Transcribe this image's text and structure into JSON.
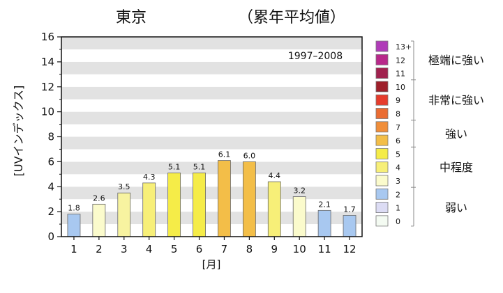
{
  "chart_data": {
    "type": "bar",
    "title": "東京",
    "subtitle": "（累年平均値）",
    "period": "1997–2008",
    "ylabel": "[UVインデックス]",
    "xlabel": "[月]",
    "ylim": [
      0,
      16
    ],
    "yticks": [
      "0",
      "2",
      "4",
      "6",
      "8",
      "10",
      "12",
      "14",
      "16"
    ],
    "categories": [
      "1",
      "2",
      "3",
      "4",
      "5",
      "6",
      "7",
      "8",
      "9",
      "10",
      "11",
      "12"
    ],
    "values": [
      1.8,
      2.6,
      3.5,
      4.3,
      5.1,
      5.1,
      6.1,
      6.0,
      4.4,
      3.2,
      2.1,
      1.7
    ],
    "value_labels": [
      "1.8",
      "2.6",
      "3.5",
      "4.3",
      "5.1",
      "5.1",
      "6.1",
      "6.0",
      "4.4",
      "3.2",
      "2.1",
      "1.7"
    ],
    "bar_colors": [
      "#a8c8f0",
      "#fbfbcc",
      "#f7f3a0",
      "#f7ef78",
      "#f5ec48",
      "#f5ec48",
      "#f3be48",
      "#f3be48",
      "#f7ef78",
      "#fbfbcc",
      "#a8c8f0",
      "#a8c8f0"
    ],
    "grid": "horizontal bands",
    "band_color": "#e2e2e2",
    "legend": {
      "placement": "right",
      "levels": [
        {
          "label": "13+",
          "color": "#b03cb8"
        },
        {
          "label": "12",
          "color": "#b8298a"
        },
        {
          "label": "11",
          "color": "#a0224e"
        },
        {
          "label": "10",
          "color": "#9e1f2a"
        },
        {
          "label": "9",
          "color": "#e63c2c"
        },
        {
          "label": "8",
          "color": "#ea6c32"
        },
        {
          "label": "7",
          "color": "#f08e3a"
        },
        {
          "label": "6",
          "color": "#f3be48"
        },
        {
          "label": "5",
          "color": "#f5ec48"
        },
        {
          "label": "4",
          "color": "#f7ef78"
        },
        {
          "label": "3",
          "color": "#fbfbcc"
        },
        {
          "label": "2",
          "color": "#a8c8f0"
        },
        {
          "label": "1",
          "color": "#dcdcf4"
        },
        {
          "label": "0",
          "color": "#f4fbf2"
        }
      ],
      "groups": [
        {
          "label": "極端に強い",
          "from": 0,
          "to": 2
        },
        {
          "label": "非常に強い",
          "from": 3,
          "to": 5
        },
        {
          "label": "強い",
          "from": 6,
          "to": 7
        },
        {
          "label": "中程度",
          "from": 8,
          "to": 10
        },
        {
          "label": "弱い",
          "from": 11,
          "to": 13
        }
      ]
    }
  }
}
